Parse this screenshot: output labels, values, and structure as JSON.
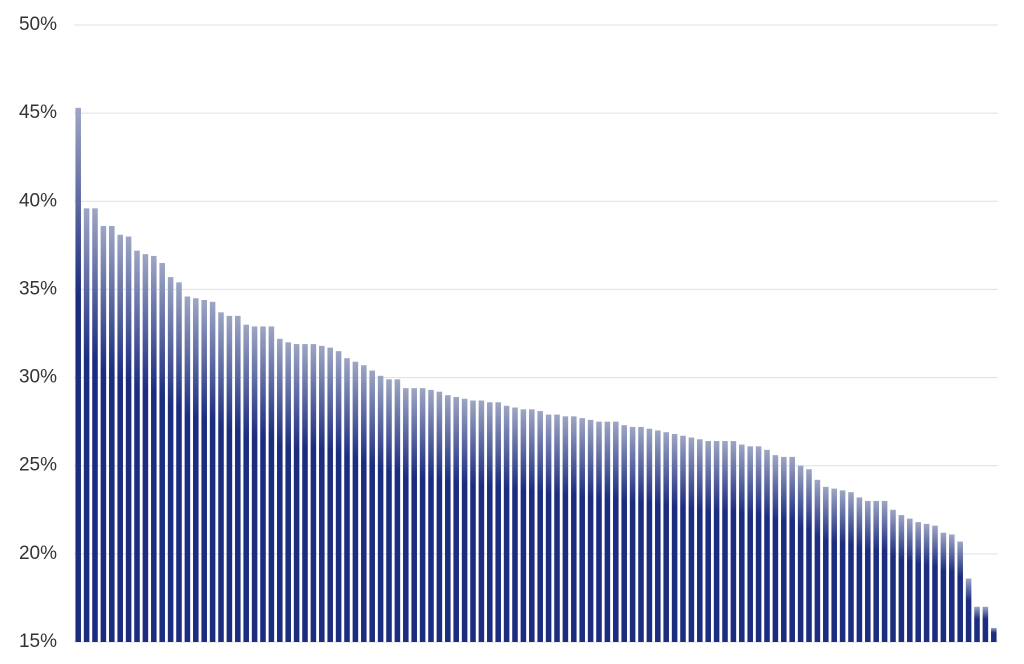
{
  "chart_data": {
    "type": "bar",
    "color": "#1c2d80",
    "values": [
      45.3,
      39.6,
      39.6,
      38.6,
      38.6,
      38.1,
      38.0,
      37.2,
      37.0,
      36.9,
      36.5,
      35.7,
      35.4,
      34.6,
      34.5,
      34.4,
      34.3,
      33.7,
      33.5,
      33.5,
      33.0,
      32.9,
      32.9,
      32.9,
      32.2,
      32.0,
      31.9,
      31.9,
      31.9,
      31.8,
      31.7,
      31.5,
      31.1,
      30.9,
      30.7,
      30.4,
      30.1,
      29.9,
      29.9,
      29.4,
      29.4,
      29.4,
      29.3,
      29.2,
      29.0,
      28.9,
      28.8,
      28.7,
      28.7,
      28.6,
      28.6,
      28.4,
      28.3,
      28.2,
      28.2,
      28.1,
      27.9,
      27.9,
      27.8,
      27.8,
      27.7,
      27.6,
      27.5,
      27.5,
      27.5,
      27.3,
      27.2,
      27.2,
      27.1,
      27.0,
      26.9,
      26.8,
      26.7,
      26.6,
      26.5,
      26.4,
      26.4,
      26.4,
      26.4,
      26.2,
      26.1,
      26.1,
      25.9,
      25.6,
      25.5,
      25.5,
      25.0,
      24.8,
      24.2,
      23.8,
      23.7,
      23.6,
      23.5,
      23.2,
      23.0,
      23.0,
      23.0,
      22.5,
      22.2,
      22.0,
      21.8,
      21.7,
      21.6,
      21.2,
      21.1,
      20.7,
      18.6,
      17.0,
      17.0,
      15.8
    ],
    "ylim": [
      15,
      50
    ],
    "yticks": [
      {
        "value": 15,
        "label": "15%"
      },
      {
        "value": 20,
        "label": "20%"
      },
      {
        "value": 25,
        "label": "25%"
      },
      {
        "value": 30,
        "label": "30%"
      },
      {
        "value": 35,
        "label": "35%"
      },
      {
        "value": 40,
        "label": "40%"
      },
      {
        "value": 45,
        "label": "45%"
      },
      {
        "value": 50,
        "label": "50%"
      }
    ],
    "grid": true
  }
}
